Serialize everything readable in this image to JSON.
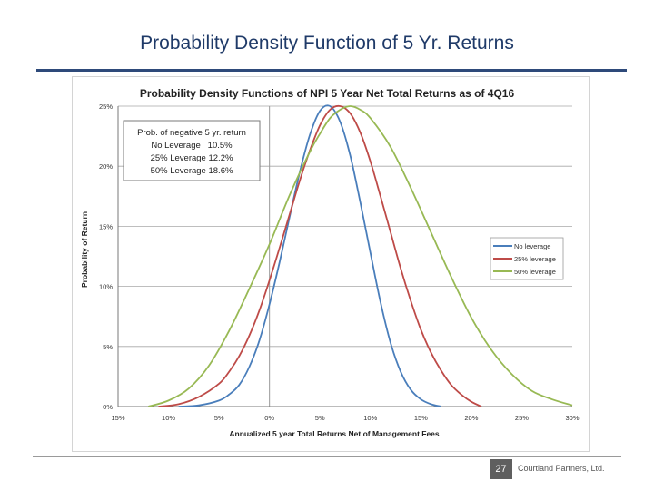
{
  "slide": {
    "title": "Probability Density Function of 5 Yr. Returns",
    "page_number": "27",
    "footer": "Courtland Partners, Ltd."
  },
  "chart_data": {
    "type": "line",
    "title": "Probability Density Functions of NPI 5 Year Net Total Returns as of 4Q16",
    "xlabel": "Annualized 5 year Total Returns Net of Management Fees",
    "ylabel": "Probability of Return",
    "x_ticks": [
      "15%",
      "10%",
      "5%",
      "0%",
      "5%",
      "10%",
      "15%",
      "20%",
      "25%",
      "30%"
    ],
    "y_ticks": [
      "0%",
      "5%",
      "10%",
      "15%",
      "20%",
      "25%"
    ],
    "xlim": [
      -15,
      30
    ],
    "ylim": [
      0,
      25
    ],
    "grid": "horizontal",
    "reference_line_x": 0,
    "legend_position": "center-right",
    "series": [
      {
        "name": "No leverage",
        "color": "#4a7ebb",
        "x": [
          -9,
          -7,
          -5,
          -4,
          -3,
          -2,
          -1,
          0,
          1,
          2,
          3,
          4,
          5,
          6,
          7,
          8,
          9,
          10,
          11,
          12,
          13,
          14,
          15,
          16,
          17
        ],
        "y": [
          0,
          0.1,
          0.5,
          1,
          1.8,
          3.3,
          5.5,
          8.5,
          12,
          15.8,
          19.5,
          22.6,
          24.6,
          25,
          23.7,
          20.9,
          17,
          12.8,
          8.7,
          5.3,
          2.9,
          1.4,
          0.6,
          0.2,
          0
        ]
      },
      {
        "name": "25% leverage",
        "color": "#be4b48",
        "x": [
          -11,
          -9,
          -7,
          -5,
          -4,
          -3,
          -2,
          -1,
          0,
          1,
          2,
          3,
          4,
          5,
          6,
          7,
          8,
          9,
          10,
          11,
          12,
          13,
          14,
          15,
          16,
          17,
          18,
          19,
          20,
          21
        ],
        "y": [
          0,
          0.2,
          0.8,
          1.9,
          2.9,
          4.2,
          5.9,
          8,
          10.5,
          13.2,
          16,
          18.8,
          21.3,
          23.4,
          24.7,
          25,
          24.4,
          22.8,
          20.4,
          17.5,
          14.5,
          11.5,
          8.8,
          6.4,
          4.5,
          3,
          1.8,
          1,
          0.4,
          0
        ]
      },
      {
        "name": "50% leverage",
        "color": "#98b954",
        "x": [
          -12,
          -10,
          -8,
          -6,
          -4,
          -2,
          0,
          2,
          4,
          5,
          6,
          7,
          8,
          9,
          10,
          12,
          14,
          16,
          18,
          20,
          22,
          24,
          26,
          28,
          30
        ],
        "y": [
          0,
          0.5,
          1.5,
          3.4,
          6.3,
          9.8,
          13.5,
          17.6,
          21.2,
          22.7,
          24,
          24.7,
          25,
          24.7,
          24,
          21.6,
          18.2,
          14.5,
          10.8,
          7.4,
          4.7,
          2.7,
          1.3,
          0.6,
          0.1
        ]
      }
    ],
    "annotation_box": {
      "lines": [
        "Prob. of negative 5 yr. return",
        "No Leverage   10.5%",
        "25% Leverage 12.2%",
        "50% Leverage 18.6%"
      ]
    }
  }
}
